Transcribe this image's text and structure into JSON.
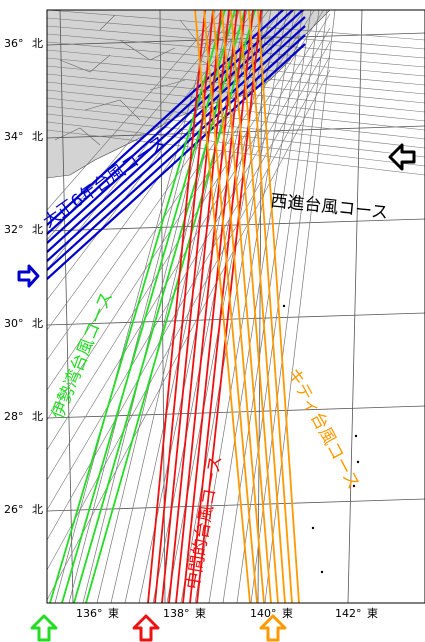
{
  "map": {
    "latitude_labels": [
      {
        "deg": "36°",
        "dir": "北"
      },
      {
        "deg": "34°",
        "dir": "北"
      },
      {
        "deg": "32°",
        "dir": "北"
      },
      {
        "deg": "30°",
        "dir": "北"
      },
      {
        "deg": "28°",
        "dir": "北"
      },
      {
        "deg": "26°",
        "dir": "北"
      }
    ],
    "longitude_labels": [
      {
        "deg": "136°",
        "dir": "東"
      },
      {
        "deg": "138°",
        "dir": "東"
      },
      {
        "deg": "140°",
        "dir": "東"
      },
      {
        "deg": "142°",
        "dir": "東"
      }
    ],
    "courses": [
      {
        "name": "大正6年台風コース",
        "color": "#0000cc"
      },
      {
        "name": "伊勢湾台風コース",
        "color": "#22dd22"
      },
      {
        "name": "中間的台風コース",
        "color": "#ee1111"
      },
      {
        "name": "キティ台風コース",
        "color": "#ff9900"
      },
      {
        "name": "西進台風コース",
        "color": "#000000"
      }
    ],
    "arrows": [
      {
        "name": "taisho-arrow",
        "color": "#0000cc"
      },
      {
        "name": "isewan-arrow",
        "color": "#22dd22"
      },
      {
        "name": "middle-arrow",
        "color": "#ee1111"
      },
      {
        "name": "kitty-arrow",
        "color": "#ff9900"
      },
      {
        "name": "west-arrow",
        "color": "#000000"
      }
    ],
    "colors": {
      "land": "#d3d3d3",
      "graticule": "#555555",
      "track_gray": "#777777"
    }
  }
}
